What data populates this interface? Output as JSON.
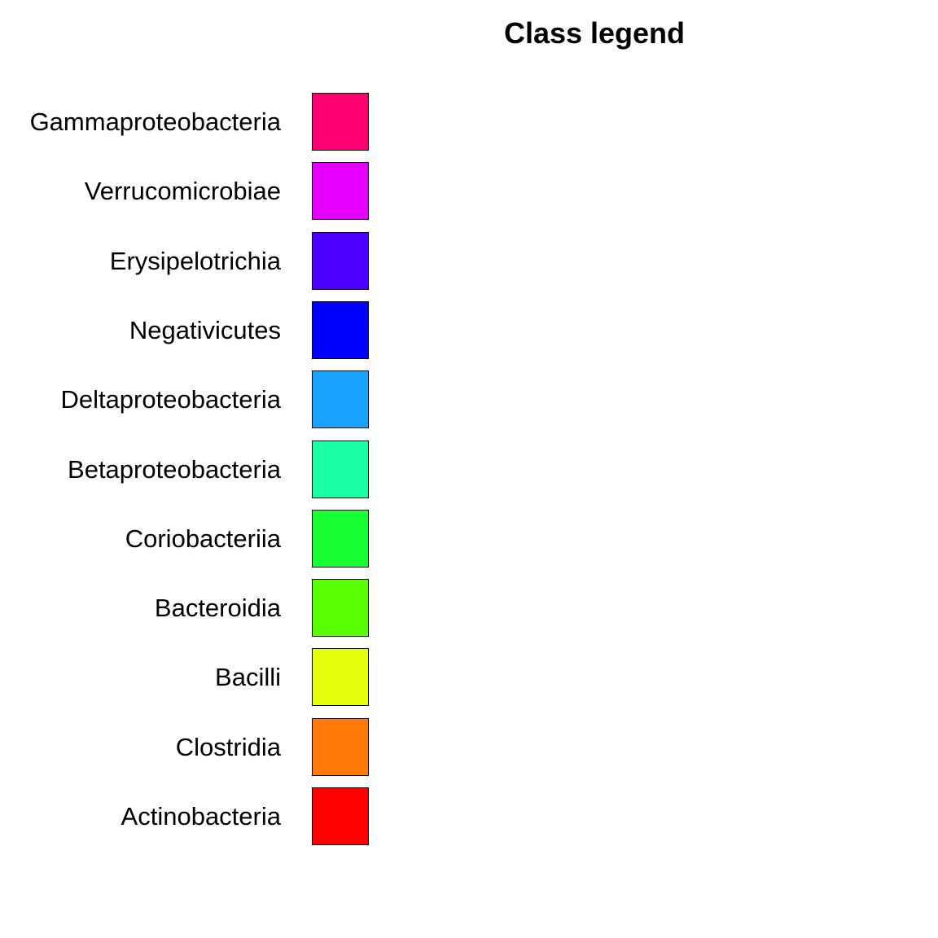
{
  "chart_data": {
    "type": "legend",
    "title": "Class legend",
    "entries": [
      {
        "label": "Gammaproteobacteria",
        "color": "#ff0073"
      },
      {
        "label": "Verrucomicrobiae",
        "color": "#e600ff"
      },
      {
        "label": "Erysipelotrichia",
        "color": "#4c00ff"
      },
      {
        "label": "Negativicutes",
        "color": "#0000ff"
      },
      {
        "label": "Deltaproteobacteria",
        "color": "#1aa3ff"
      },
      {
        "label": "Betaproteobacteria",
        "color": "#1affa3"
      },
      {
        "label": "Coriobacteriia",
        "color": "#1aff33"
      },
      {
        "label": "Bacteroidia",
        "color": "#59ff00"
      },
      {
        "label": "Bacilli",
        "color": "#e6ff0f"
      },
      {
        "label": "Clostridia",
        "color": "#ff7a0a"
      },
      {
        "label": "Actinobacteria",
        "color": "#ff0000"
      }
    ]
  }
}
